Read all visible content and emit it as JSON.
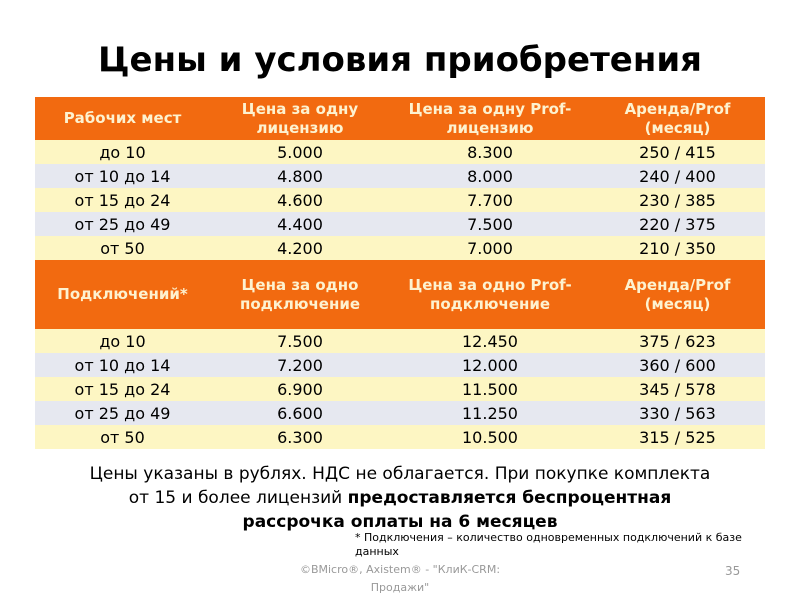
{
  "title": "Цены и условия приобретения",
  "workstations": {
    "headers": [
      "Рабочих мест",
      "Цена за одну лицензию",
      "Цена за одну Prof-лицензию",
      "Аренда/Prof (месяц)"
    ],
    "rows": [
      [
        "до 10",
        "5.000",
        "8.300",
        "250 / 415"
      ],
      [
        "от 10 до 14",
        "4.800",
        "8.000",
        "240 / 400"
      ],
      [
        "от 15 до 24",
        "4.600",
        "7.700",
        "230 /  385"
      ],
      [
        "от 25 до 49",
        "4.400",
        "7.500",
        "220 / 375"
      ],
      [
        "от 50",
        "4.200",
        "7.000",
        "210 / 350"
      ]
    ]
  },
  "connections": {
    "headers": [
      "Подключений*",
      "Цена за одно подключение",
      "Цена за одно Prof-подключение",
      "Аренда/Prof (месяц)"
    ],
    "rows": [
      [
        "до 10",
        "7.500",
        "12.450",
        "375 / 623"
      ],
      [
        "от 10 до 14",
        "7.200",
        "12.000",
        "360 / 600"
      ],
      [
        "от 15 до 24",
        "6.900",
        "11.500",
        "345 / 578"
      ],
      [
        "от 25 до 49",
        "6.600",
        "11.250",
        "330 / 563"
      ],
      [
        "от 50",
        "6.300",
        "10.500",
        "315 / 525"
      ]
    ]
  },
  "note": {
    "regular": "Цены указаны в рублях. НДС не облагается. При покупке комплекта от 15 и более лицензий ",
    "bold": "предоставляется беспроцентная рассрочка оплаты на 6 месяцев"
  },
  "footnote": "* Подключения – количество одновременных подключений к базе данных",
  "copyright": "©BMicro®, Axistem® - \"КлиК-CRM: Продажи\"",
  "page_number": "35",
  "colors": {
    "header": "#f26a10",
    "row_odd": "#fdf6c3",
    "row_even": "#e6e8f0"
  }
}
